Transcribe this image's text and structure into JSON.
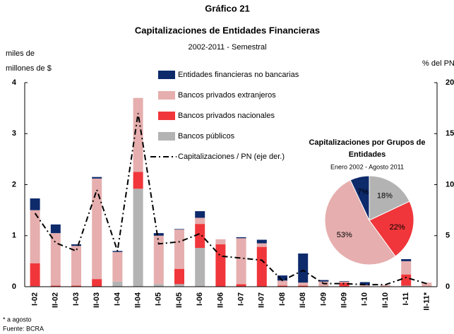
{
  "chart_data": [
    {
      "type": "bar",
      "title": "Gráfico 21",
      "subtitle": "Capitalizaciones de Entidades Financieras",
      "period": "2002-2011 - Semestral",
      "ylabel": [
        "miles de",
        "millones de $"
      ],
      "y2label": "% del PN",
      "categories": [
        "I-02",
        "II-02",
        "I-03",
        "II-03",
        "I-04",
        "II-04",
        "I-05",
        "II-05",
        "I-06",
        "II-06",
        "I-07",
        "II-07",
        "I-08",
        "II-08",
        "I-09",
        "II-09",
        "I-10",
        "II-10",
        "I-11",
        "II-11*"
      ],
      "stacked": true,
      "series": [
        {
          "name": "Bancos públicos",
          "color": "#b3b3b3",
          "values": [
            0.01,
            0,
            0,
            0,
            0.1,
            1.92,
            0.05,
            0.05,
            0.76,
            0,
            0,
            0,
            0,
            0,
            0,
            0,
            0,
            0,
            0.02,
            0
          ]
        },
        {
          "name": "Bancos privados nacionales",
          "color": "#f0363a",
          "values": [
            0.45,
            0.02,
            0.02,
            0.15,
            0,
            0.33,
            0,
            0.3,
            0.47,
            0.83,
            0.05,
            0.78,
            0.02,
            0.02,
            0,
            0.08,
            0,
            0,
            0.22,
            0
          ]
        },
        {
          "name": "Bancos privados extranjeros",
          "color": "#e6aeae",
          "values": [
            1.04,
            1.03,
            0.78,
            1.97,
            0.58,
            1.45,
            0.95,
            0.77,
            0.12,
            0.1,
            0.9,
            0.07,
            0.1,
            0.06,
            0.1,
            0.02,
            0.03,
            0.03,
            0.26,
            0.08
          ]
        },
        {
          "name": "Entidades financieras no bancarias",
          "color": "#0d2a6b",
          "values": [
            0.23,
            0.17,
            0.03,
            0.03,
            0.02,
            0,
            0.05,
            0.01,
            0.13,
            0,
            0.02,
            0.07,
            0.1,
            0.57,
            0.03,
            0.01,
            0.06,
            0,
            0.04,
            0
          ]
        },
        {
          "name": "Capitalizaciones / PN (eje der.)",
          "color": "#000000",
          "type": "line",
          "axis": "y2",
          "values": [
            7.2,
            4.3,
            3.5,
            9.5,
            3.5,
            17,
            4.2,
            4.4,
            5.2,
            3.0,
            2.8,
            2.6,
            0.6,
            1.6,
            0.3,
            0.3,
            0.2,
            0.2,
            0.9,
            0.3
          ]
        }
      ],
      "ylim": [
        0,
        4
      ],
      "yticks": [
        0,
        1,
        2,
        3,
        4
      ],
      "y2lim": [
        0,
        20
      ],
      "y2ticks": [
        0,
        5,
        10,
        15,
        20
      ]
    },
    {
      "type": "pie",
      "title": [
        "Capitalizaciones por Grupos de",
        "Entidades"
      ],
      "subtitle": "Enero 2002 - Agosto 2011",
      "categories": [
        "Bancos públicos",
        "Bancos privados nacionales",
        "Bancos privados extranjeros",
        "Entidades financieras no bancarias"
      ],
      "values": [
        18,
        22,
        53,
        7
      ],
      "value_labels": [
        "18%",
        "22%",
        "53%",
        "7%"
      ],
      "colors": [
        "#b3b3b3",
        "#f0363a",
        "#e6aeae",
        "#0d2a6b"
      ]
    }
  ],
  "notes": [
    "* a agosto",
    "Fuente: BCRA"
  ]
}
